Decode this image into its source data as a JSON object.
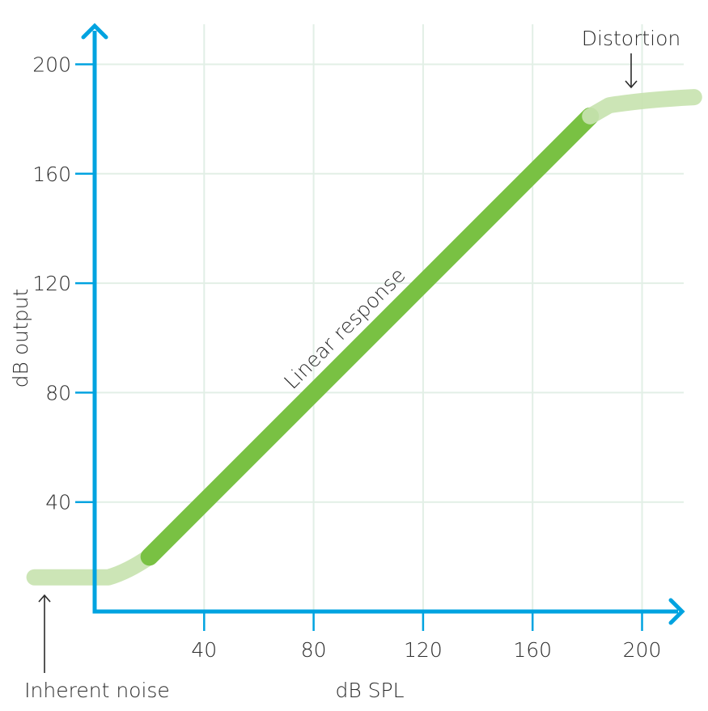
{
  "chart_data": {
    "type": "line",
    "xlabel": "dB SPL",
    "ylabel": "dB output",
    "xlim": [
      0,
      215
    ],
    "ylim": [
      0,
      200
    ],
    "x_ticks": [
      40,
      80,
      120,
      160,
      200
    ],
    "y_ticks": [
      40,
      80,
      120,
      160,
      200
    ],
    "grid": true,
    "series": [
      {
        "role": "noise",
        "color": "#c8e3b0",
        "points": [
          [
            -22,
            12.5
          ],
          [
            5,
            12.5
          ],
          [
            12,
            14.5
          ],
          [
            20,
            20
          ]
        ]
      },
      {
        "role": "linear",
        "color": "#79c143",
        "points": [
          [
            20,
            20
          ],
          [
            181,
            181
          ]
        ]
      },
      {
        "role": "distortion",
        "color": "#c8e3b0",
        "points": [
          [
            181,
            181
          ],
          [
            188,
            185
          ],
          [
            200,
            187
          ],
          [
            219,
            188
          ]
        ]
      }
    ],
    "annotations": [
      {
        "text": "Distortion",
        "x": 196,
        "y": 210
      },
      {
        "text": "Inherent noise",
        "x": -18,
        "y": -29
      },
      {
        "text": "Linear response",
        "x": 93,
        "y": 102
      }
    ],
    "axis_color": "#00a3e0",
    "grid_color": "#e2efe6"
  }
}
